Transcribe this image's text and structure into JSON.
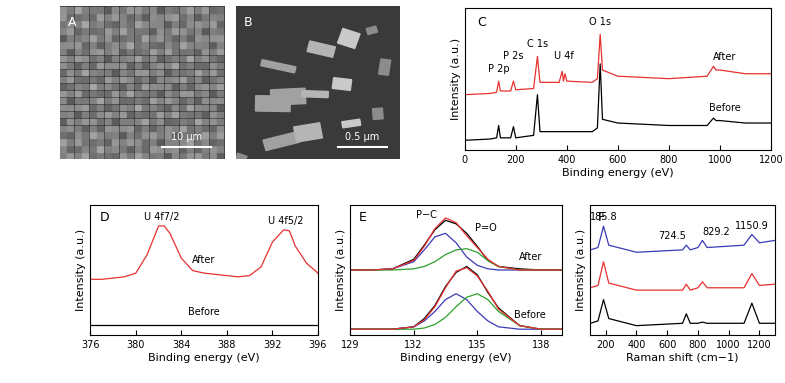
{
  "chart_data": [
    {
      "type": "image",
      "panel": "A",
      "scale_bar": "10 μm"
    },
    {
      "type": "image",
      "panel": "B",
      "scale_bar": "0.5 μm"
    },
    {
      "type": "line",
      "panel": "C",
      "x_label": "Binding energy (eV)",
      "y_label": "Intensity (a.u.)",
      "xlim": [
        0,
        1200
      ],
      "xticks": [
        0,
        200,
        400,
        600,
        800,
        1000,
        1200
      ],
      "ylim": [
        0,
        1.15
      ],
      "tick_labels": "x",
      "x": [
        0,
        100,
        125,
        133,
        140,
        180,
        191,
        200,
        270,
        285,
        295,
        370,
        382,
        387,
        393,
        400,
        500,
        520,
        531,
        540,
        600,
        800,
        950,
        975,
        985,
        1000,
        1100,
        1200
      ],
      "series": [
        {
          "name": "After",
          "color": "#e8312f",
          "values": [
            0.45,
            0.46,
            0.47,
            0.56,
            0.48,
            0.48,
            0.56,
            0.49,
            0.5,
            0.76,
            0.55,
            0.55,
            0.64,
            0.56,
            0.62,
            0.56,
            0.55,
            0.58,
            0.94,
            0.65,
            0.6,
            0.58,
            0.6,
            0.68,
            0.65,
            0.65,
            0.62,
            0.62
          ]
        },
        {
          "name": "Before",
          "color": "#000000",
          "values": [
            0.08,
            0.09,
            0.1,
            0.2,
            0.1,
            0.1,
            0.19,
            0.1,
            0.12,
            0.45,
            0.15,
            0.15,
            0.15,
            0.15,
            0.15,
            0.15,
            0.15,
            0.18,
            0.7,
            0.25,
            0.22,
            0.2,
            0.2,
            0.26,
            0.24,
            0.24,
            0.22,
            0.22
          ]
        }
      ],
      "annotations": [
        {
          "text": "P 2p",
          "x": 133
        },
        {
          "text": "P 2s",
          "x": 191
        },
        {
          "text": "C 1s",
          "x": 285
        },
        {
          "text": "U 4f",
          "x": 387
        },
        {
          "text": "O 1s",
          "x": 531
        }
      ]
    },
    {
      "type": "line",
      "panel": "D",
      "x_label": "Binding energy (eV)",
      "y_label": "Intensity (a.u.)",
      "xlim": [
        376,
        396
      ],
      "xticks": [
        376,
        380,
        384,
        388,
        392,
        396
      ],
      "ylim": [
        0,
        1.05
      ],
      "tick_labels": "x",
      "x": [
        376,
        377,
        378,
        379,
        380,
        381,
        382,
        382.5,
        383,
        384,
        385,
        386,
        387,
        388,
        389,
        390,
        391,
        392,
        393,
        393.5,
        394,
        395,
        396
      ],
      "series": [
        {
          "name": "After",
          "color": "#e8312f",
          "values": [
            0.45,
            0.45,
            0.46,
            0.47,
            0.5,
            0.65,
            0.88,
            0.88,
            0.82,
            0.62,
            0.52,
            0.5,
            0.49,
            0.48,
            0.47,
            0.48,
            0.55,
            0.75,
            0.85,
            0.84,
            0.72,
            0.58,
            0.5
          ]
        },
        {
          "name": "Before",
          "color": "#000000",
          "values": [
            0.08,
            0.08,
            0.08,
            0.08,
            0.08,
            0.08,
            0.08,
            0.08,
            0.08,
            0.08,
            0.08,
            0.08,
            0.08,
            0.08,
            0.08,
            0.08,
            0.08,
            0.08,
            0.08,
            0.08,
            0.08,
            0.08,
            0.08
          ]
        }
      ],
      "annotations": [
        {
          "text": "U 4f7/2",
          "x": 382.3
        },
        {
          "text": "U 4f5/2",
          "x": 393.2
        }
      ]
    },
    {
      "type": "line",
      "panel": "E",
      "x_label": "Binding energy (eV)",
      "y_label": "Intensity (a.u.)",
      "xlim": [
        129,
        139
      ],
      "xticks": [
        129,
        132,
        135,
        138
      ],
      "ylim": [
        0,
        1.1
      ],
      "tick_labels": "x",
      "x": [
        129,
        130,
        131,
        132,
        132.5,
        133,
        133.5,
        134,
        134.5,
        135,
        135.5,
        136,
        137,
        138,
        139
      ],
      "groups": [
        {
          "name": "After",
          "curves": [
            {
              "color": "#000000",
              "values": [
                0.55,
                0.55,
                0.56,
                0.64,
                0.76,
                0.89,
                0.97,
                0.94,
                0.86,
                0.75,
                0.63,
                0.58,
                0.56,
                0.55,
                0.55
              ]
            },
            {
              "color": "#3a3ab8",
              "values": [
                0.55,
                0.55,
                0.56,
                0.62,
                0.72,
                0.83,
                0.86,
                0.78,
                0.66,
                0.59,
                0.56,
                0.55,
                0.55,
                0.55,
                0.55
              ]
            },
            {
              "color": "#2ca02c",
              "values": [
                0.55,
                0.55,
                0.55,
                0.56,
                0.58,
                0.62,
                0.68,
                0.72,
                0.73,
                0.7,
                0.63,
                0.58,
                0.55,
                0.55,
                0.55
              ]
            },
            {
              "color": "#e8312f",
              "values": [
                0.55,
                0.55,
                0.56,
                0.63,
                0.75,
                0.9,
                0.99,
                0.95,
                0.84,
                0.74,
                0.64,
                0.58,
                0.55,
                0.55,
                0.55
              ]
            }
          ]
        },
        {
          "name": "Before",
          "curves": [
            {
              "color": "#000000",
              "values": [
                0.05,
                0.05,
                0.05,
                0.07,
                0.14,
                0.25,
                0.41,
                0.53,
                0.58,
                0.51,
                0.36,
                0.23,
                0.08,
                0.05,
                0.05
              ]
            },
            {
              "color": "#3a3ab8",
              "values": [
                0.05,
                0.05,
                0.05,
                0.07,
                0.12,
                0.2,
                0.3,
                0.35,
                0.3,
                0.2,
                0.12,
                0.07,
                0.05,
                0.05,
                0.05
              ]
            },
            {
              "color": "#2ca02c",
              "values": [
                0.05,
                0.05,
                0.05,
                0.05,
                0.06,
                0.09,
                0.15,
                0.24,
                0.32,
                0.35,
                0.3,
                0.2,
                0.08,
                0.05,
                0.05
              ]
            },
            {
              "color": "#e8312f",
              "values": [
                0.05,
                0.05,
                0.05,
                0.07,
                0.13,
                0.24,
                0.4,
                0.54,
                0.57,
                0.5,
                0.37,
                0.22,
                0.08,
                0.05,
                0.05
              ]
            }
          ]
        }
      ],
      "annotations": [
        {
          "text": "P−C",
          "x": 133.3
        },
        {
          "text": "P=O",
          "x": 134.6
        }
      ]
    },
    {
      "type": "line",
      "panel": "F",
      "x_label": "Raman shift (cm−1)",
      "y_label": "Intensity (a.u.)",
      "xlim": [
        100,
        1300
      ],
      "xticks": [
        200,
        400,
        600,
        800,
        1000,
        1200
      ],
      "ylim": [
        0,
        1.1
      ],
      "tick_labels": "x",
      "x": [
        100,
        150,
        185.8,
        220,
        400,
        700,
        724.5,
        750,
        800,
        829.2,
        860,
        1100,
        1150.9,
        1200,
        1300
      ],
      "series": [
        {
          "color": "#3a3ab8",
          "values": [
            0.72,
            0.74,
            0.92,
            0.76,
            0.7,
            0.72,
            0.76,
            0.72,
            0.74,
            0.8,
            0.74,
            0.76,
            0.85,
            0.78,
            0.8
          ]
        },
        {
          "color": "#e8312f",
          "values": [
            0.4,
            0.42,
            0.62,
            0.44,
            0.38,
            0.38,
            0.43,
            0.38,
            0.4,
            0.45,
            0.4,
            0.4,
            0.52,
            0.42,
            0.43
          ]
        },
        {
          "color": "#000000",
          "values": [
            0.1,
            0.12,
            0.3,
            0.14,
            0.08,
            0.1,
            0.18,
            0.1,
            0.1,
            0.11,
            0.1,
            0.1,
            0.27,
            0.1,
            0.1
          ]
        }
      ],
      "peak_labels": [
        185.8,
        724.5,
        829.2,
        1150.9
      ]
    }
  ]
}
